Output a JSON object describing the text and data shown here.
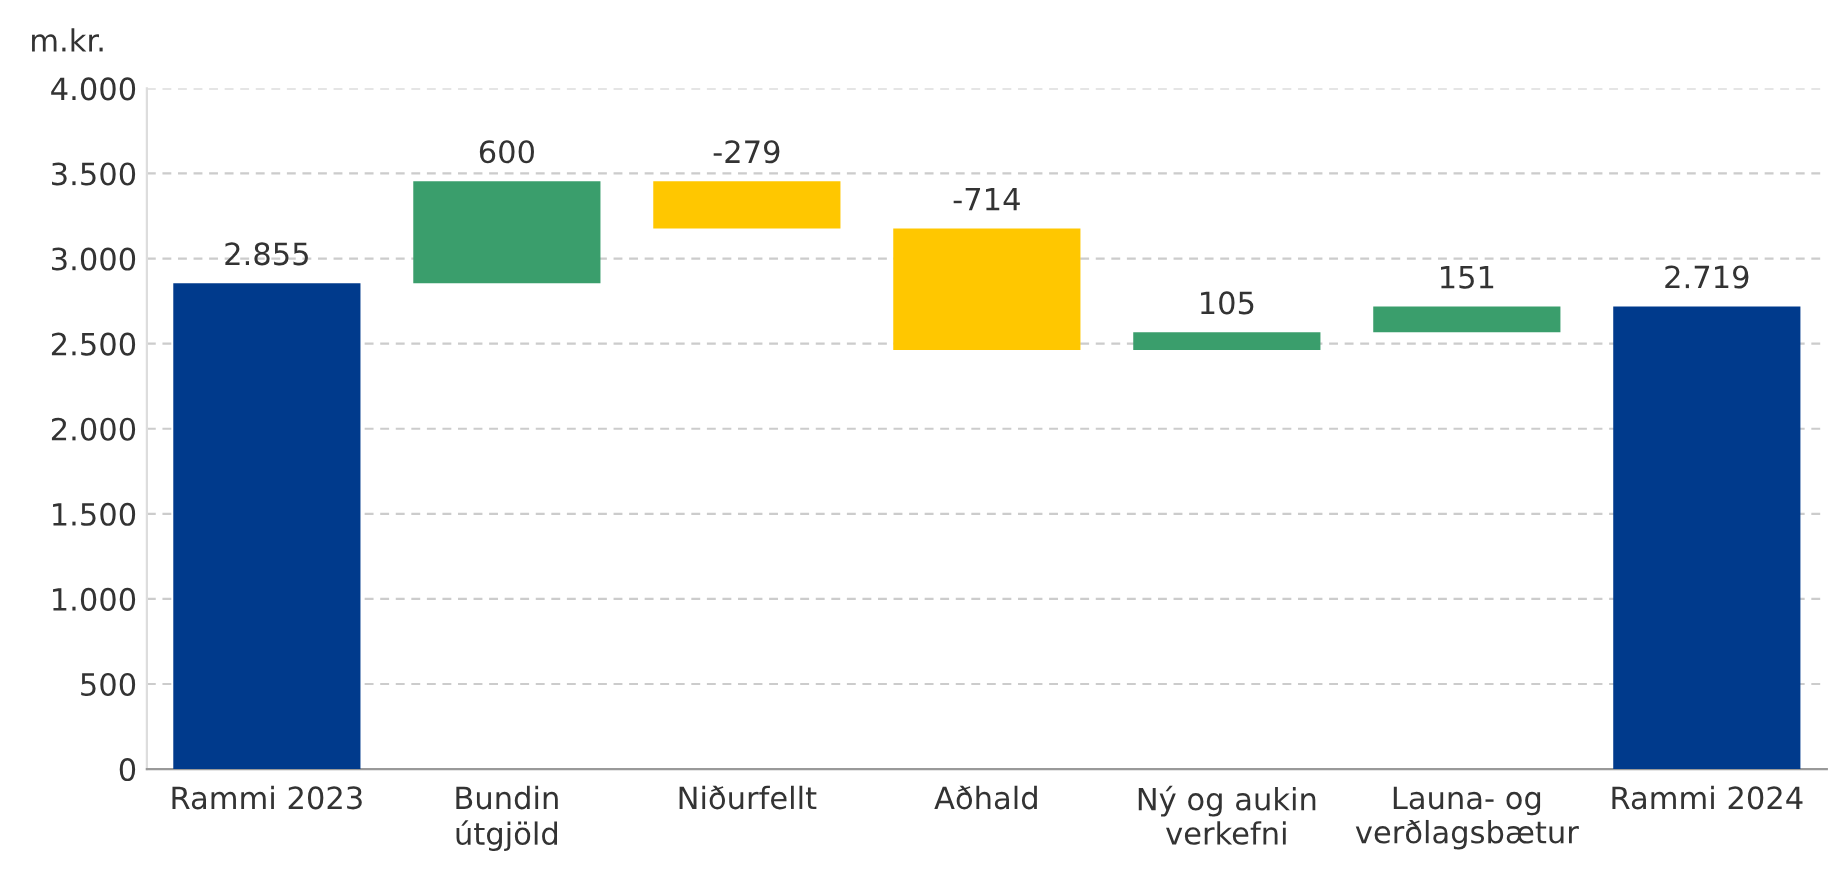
{
  "chart_data": {
    "type": "bar",
    "ylabel": "m.kr.",
    "categories": [
      "Rammi 2023",
      "Bundin\nútgjöld",
      "Niðurfellt",
      "Aðhald",
      "Ný og aukin\nverkefni",
      "Launa- og\nverðlagsbætur",
      "Rammi 2024"
    ],
    "values": [
      2855,
      600,
      -279,
      -714,
      105,
      151,
      2719
    ],
    "base": [
      0,
      2855,
      3455,
      3176,
      2462,
      2567,
      0
    ],
    "colors": [
      "#003a8c",
      "#3a9e6c",
      "#ffc700",
      "#ffc700",
      "#3a9e6c",
      "#3a9e6c",
      "#003a8c"
    ],
    "value_labels": [
      "2.855",
      "600",
      "-279",
      "-714",
      "105",
      "151",
      "2.719"
    ],
    "ylim": [
      0,
      4000
    ],
    "yticks": [
      0,
      500,
      {
        "value": 1000,
        "label": "1.000"
      },
      {
        "value": 1500,
        "label": "1.500"
      },
      {
        "value": 2000,
        "label": "2.000"
      },
      {
        "value": 2500,
        "label": "2.500"
      },
      {
        "value": 3000,
        "label": "3.000"
      },
      {
        "value": 3500,
        "label": "3.500"
      },
      {
        "value": 4000,
        "label": "4.000"
      }
    ],
    "grid": "y",
    "legend": false
  }
}
